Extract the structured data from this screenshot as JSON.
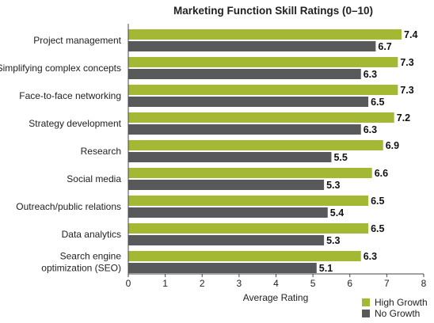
{
  "chart_data": {
    "type": "bar",
    "orientation": "horizontal",
    "title": "Marketing Function Skill Ratings (0–10)",
    "xlabel": "Average Rating",
    "ylabel": "",
    "xlim": [
      0,
      8
    ],
    "ticks": [
      0,
      1,
      2,
      3,
      4,
      5,
      6,
      7,
      8
    ],
    "grid": false,
    "legend_position": "bottom-right",
    "categories": [
      [
        "Project management"
      ],
      [
        "Simplifying complex concepts"
      ],
      [
        "Face-to-face networking"
      ],
      [
        "Strategy development"
      ],
      [
        "Research"
      ],
      [
        "Social media"
      ],
      [
        "Outreach/public relations"
      ],
      [
        "Data analytics"
      ],
      [
        "Search engine",
        "optimization (SEO)"
      ]
    ],
    "series": [
      {
        "name": "High Growth",
        "color": "#a5b834",
        "values": [
          7.4,
          7.3,
          7.3,
          7.2,
          6.9,
          6.6,
          6.5,
          6.5,
          6.3
        ],
        "labels": [
          "7.4",
          "7.3",
          "7.3",
          "7.2",
          "6.9",
          "6.6",
          "6.5",
          "6.5",
          "6.3"
        ]
      },
      {
        "name": "No Growth",
        "color": "#58595b",
        "values": [
          6.7,
          6.3,
          6.5,
          6.3,
          5.5,
          5.3,
          5.4,
          5.3,
          5.1
        ],
        "labels": [
          "6.7",
          "6.3",
          "6.5",
          "6.3",
          "5.5",
          "5.3",
          "5.4",
          "5.3",
          "5.1"
        ]
      }
    ]
  }
}
